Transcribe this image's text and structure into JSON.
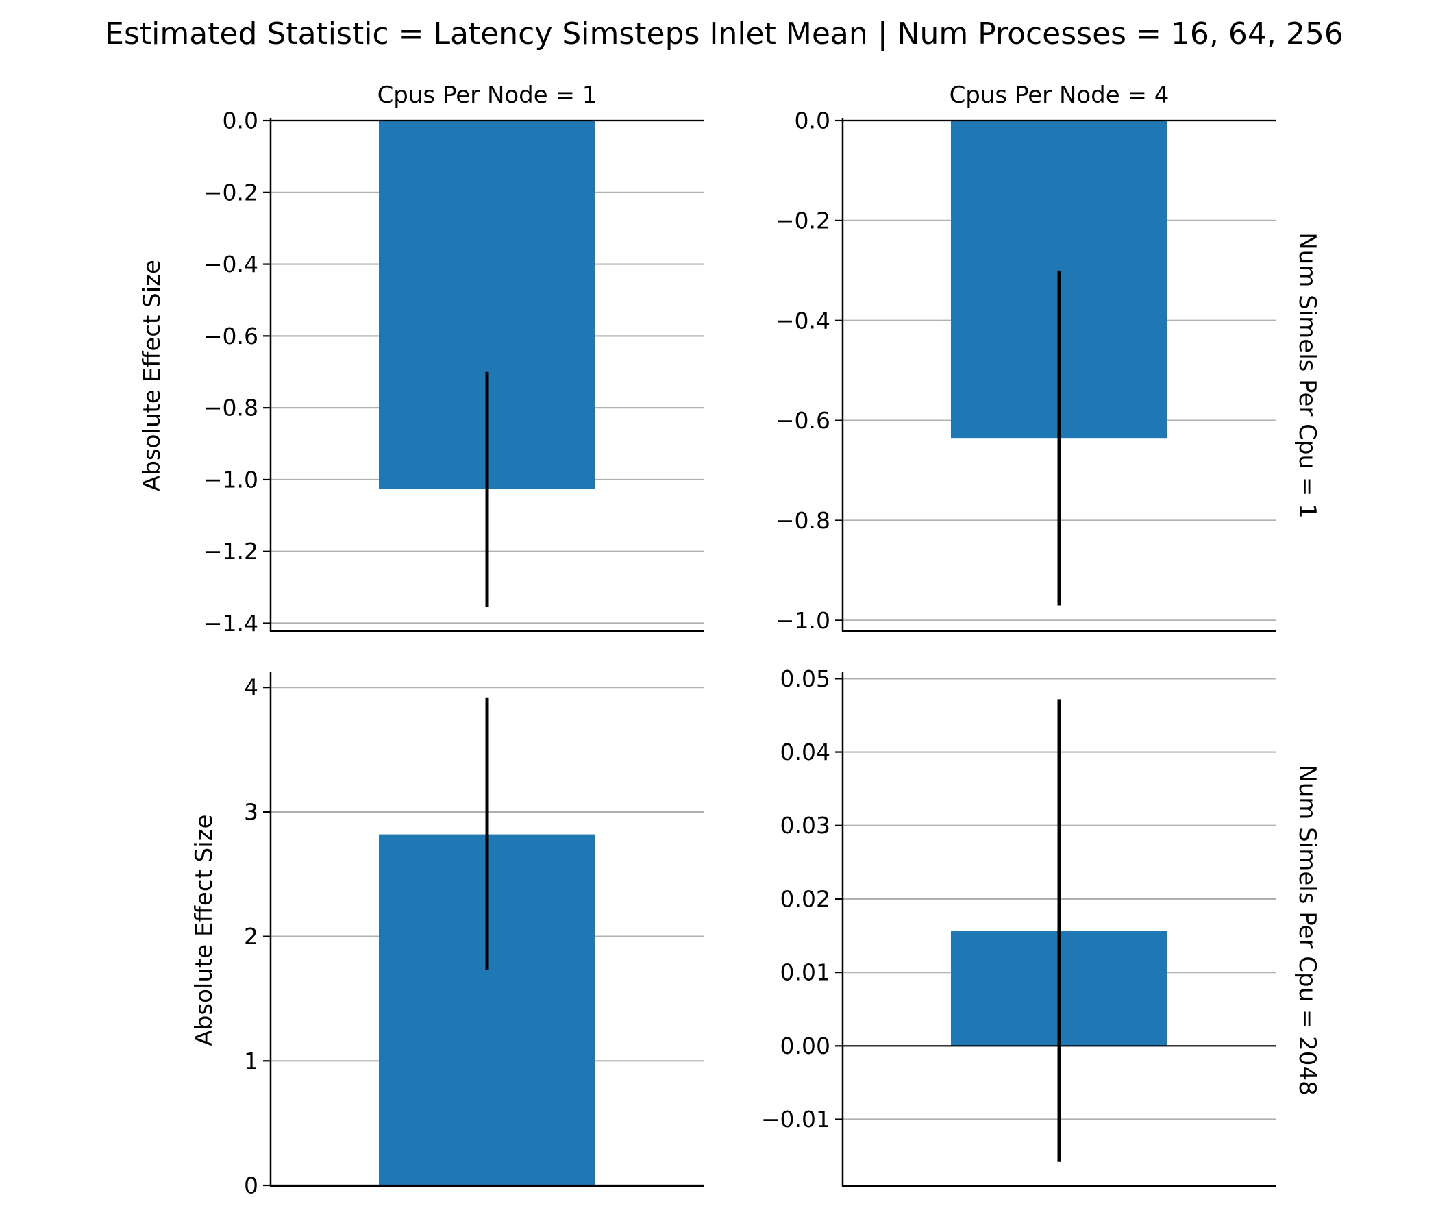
{
  "figure": {
    "title": "Estimated Statistic = Latency Simsteps Inlet Mean | Num Processes = 16, 64, 256"
  },
  "colors": {
    "bar": "#1f77b4",
    "errorbar": "#000000",
    "grid": "#b0b0b0",
    "axis": "#000000"
  },
  "chart_data": [
    {
      "type": "bar",
      "col_title": "Cpus Per Node = 1",
      "row_title": "",
      "ylabel": "Absolute Effect Size",
      "ylim": [
        -1.42,
        0.0
      ],
      "yticks": [
        0.0,
        -0.2,
        -0.4,
        -0.6,
        -0.8,
        -1.0,
        -1.2,
        -1.4
      ],
      "ytick_labels": [
        "0.0",
        "−0.2",
        "−0.4",
        "−0.6",
        "−0.8",
        "−1.0",
        "−1.2",
        "−1.4"
      ],
      "value": -1.025,
      "ci": [
        -1.355,
        -0.7
      ],
      "grid": "horizontal"
    },
    {
      "type": "bar",
      "col_title": "Cpus Per Node = 4",
      "row_title": "Num Simels Per Cpu = 1",
      "ylabel": "",
      "ylim": [
        -1.02,
        0.0
      ],
      "yticks": [
        0.0,
        -0.2,
        -0.4,
        -0.6,
        -0.8,
        -1.0
      ],
      "ytick_labels": [
        "0.0",
        "−0.2",
        "−0.4",
        "−0.6",
        "−0.8",
        "−1.0"
      ],
      "value": -0.635,
      "ci": [
        -0.97,
        -0.3
      ],
      "grid": "horizontal"
    },
    {
      "type": "bar",
      "col_title": "",
      "row_title": "",
      "ylabel": "Absolute Effect Size",
      "ylim": [
        0,
        4.1
      ],
      "yticks": [
        0,
        1,
        2,
        3,
        4
      ],
      "ytick_labels": [
        "0",
        "1",
        "2",
        "3",
        "4"
      ],
      "value": 2.82,
      "ci": [
        1.73,
        3.92
      ],
      "grid": "horizontal"
    },
    {
      "type": "bar",
      "col_title": "",
      "row_title": "Num Simels Per Cpu = 2048",
      "ylabel": "",
      "ylim": [
        -0.019,
        0.0505
      ],
      "yticks": [
        0.05,
        0.04,
        0.03,
        0.02,
        0.01,
        0.0,
        -0.01
      ],
      "ytick_labels": [
        "0.05",
        "0.04",
        "0.03",
        "0.02",
        "0.01",
        "0.00",
        "−0.01"
      ],
      "value": 0.0157,
      "ci": [
        -0.0158,
        0.0472
      ],
      "grid": "horizontal"
    }
  ]
}
